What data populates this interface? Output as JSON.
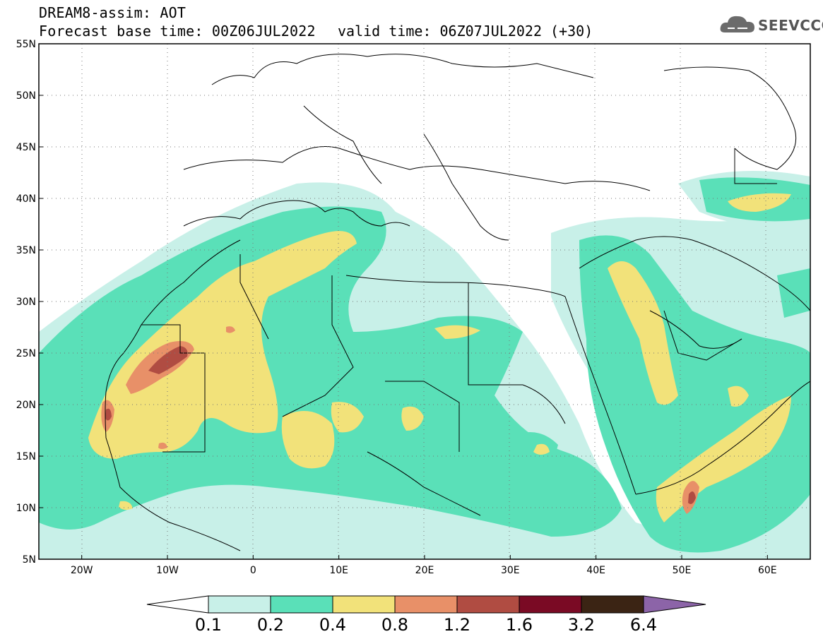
{
  "header": {
    "line1": "DREAM8-assim: AOT",
    "line2": "Forecast base time: 00Z06JUL2022",
    "valid": "valid time: 06Z07JUL2022 (+30)",
    "logo_text": "SEEVCCC"
  },
  "map": {
    "lat_labels": [
      "55N",
      "50N",
      "45N",
      "40N",
      "35N",
      "30N",
      "25N",
      "20N",
      "15N",
      "10N",
      "5N"
    ],
    "lon_labels": [
      "20W",
      "10W",
      "0",
      "10E",
      "20E",
      "30E",
      "40E",
      "50E",
      "60E"
    ],
    "lat_range": [
      5,
      55
    ],
    "lon_range": [
      -25,
      65
    ],
    "grid": "dotted"
  },
  "colorbar": {
    "levels": [
      "0.1",
      "0.2",
      "0.4",
      "0.8",
      "1.2",
      "1.6",
      "3.2",
      "6.4"
    ],
    "colors": [
      "#ffffff",
      "#c8f0e8",
      "#5ae0b8",
      "#f2e27a",
      "#e89068",
      "#b04c42",
      "#7a0a24",
      "#3b2414",
      "#8c64a8"
    ]
  }
}
